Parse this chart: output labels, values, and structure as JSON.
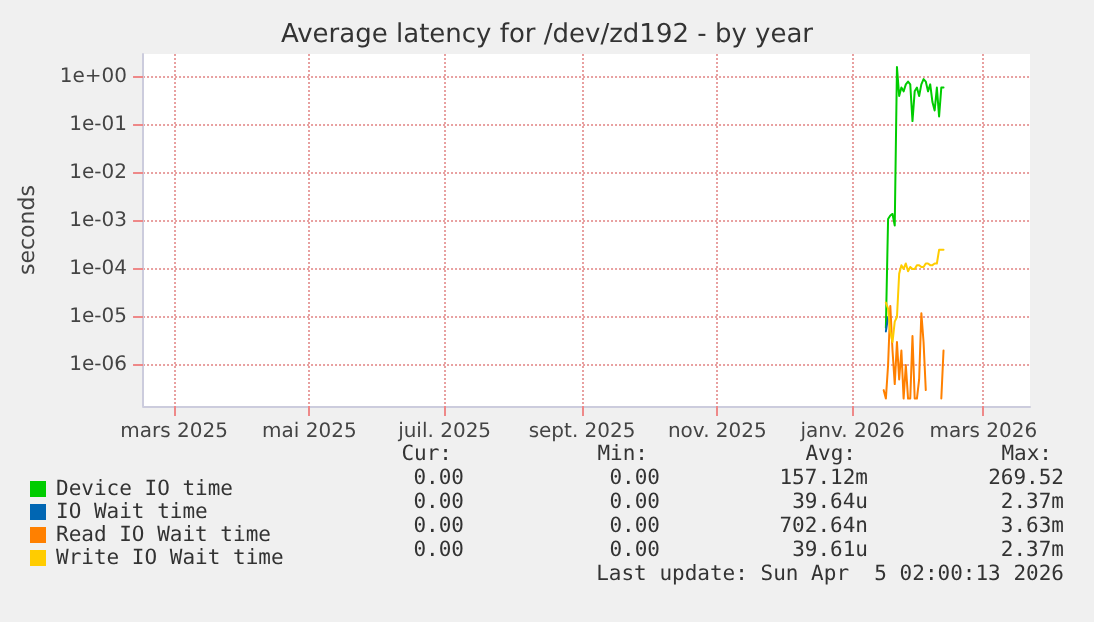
{
  "chart_data": {
    "type": "line",
    "title": "Average latency for /dev/zd192 - by year",
    "ylabel": "seconds",
    "x": [
      "2026-01-29",
      "2026-01-30",
      "2026-01-31",
      "2026-02-01",
      "2026-02-02",
      "2026-02-03",
      "2026-02-04",
      "2026-02-05",
      "2026-02-06",
      "2026-02-07",
      "2026-02-08",
      "2026-02-09",
      "2026-02-10",
      "2026-02-11",
      "2026-02-12",
      "2026-02-13",
      "2026-02-14",
      "2026-02-15",
      "2026-02-16",
      "2026-02-17",
      "2026-02-18",
      "2026-02-19",
      "2026-02-20",
      "2026-02-21",
      "2026-02-22",
      "2026-02-23",
      "2026-02-24",
      "2026-02-25"
    ],
    "series": [
      {
        "name": "Device IO time",
        "color": "#00cc00",
        "values": [
          null,
          6e-06,
          0.0011,
          0.0013,
          0.0014,
          0.0008,
          1.6,
          0.4,
          0.6,
          0.5,
          0.7,
          0.8,
          0.7,
          0.12,
          0.5,
          0.6,
          0.4,
          0.7,
          0.9,
          0.8,
          0.5,
          0.7,
          0.3,
          0.2,
          0.6,
          0.15,
          0.6,
          0.6
        ]
      },
      {
        "name": "IO Wait time",
        "color": "#0066b3",
        "values": [
          null,
          5e-06,
          1e-05,
          null,
          null,
          null,
          null,
          null,
          null,
          null,
          null,
          null,
          null,
          null,
          null,
          null,
          null,
          null,
          null,
          null,
          null,
          null,
          null,
          null,
          null,
          null,
          null,
          null
        ]
      },
      {
        "name": "Read IO Wait time",
        "color": "#ff8000",
        "values": [
          3e-07,
          2e-07,
          1e-06,
          1.7e-05,
          2e-06,
          4e-07,
          3e-06,
          5e-07,
          2e-06,
          2e-07,
          1e-06,
          2e-07,
          2e-07,
          4e-06,
          2e-07,
          2e-07,
          5e-07,
          1.2e-05,
          3e-06,
          3e-07,
          null,
          null,
          null,
          null,
          null,
          null,
          2e-07,
          2e-06
        ]
      },
      {
        "name": "Write IO Wait time",
        "color": "#ffcc00",
        "values": [
          null,
          2e-05,
          1.5e-05,
          5e-06,
          3e-06,
          8e-06,
          1e-05,
          8e-05,
          0.00012,
          0.0001,
          0.00013,
          9e-05,
          0.00011,
          0.0001,
          0.0001,
          0.00012,
          0.00012,
          0.00011,
          0.00011,
          0.00013,
          0.00013,
          0.00012,
          0.00012,
          0.00013,
          0.00013,
          0.00025,
          0.00025,
          0.00025
        ]
      }
    ],
    "log": "y",
    "ylim": [
      1.4e-07,
      3
    ],
    "yticks": [
      {
        "value": 1e-06,
        "label": "1e-06"
      },
      {
        "value": 1e-05,
        "label": "1e-05"
      },
      {
        "value": 0.0001,
        "label": "1e-04"
      },
      {
        "value": 0.001,
        "label": "1e-03"
      },
      {
        "value": 0.01,
        "label": "1e-02"
      },
      {
        "value": 0.1,
        "label": "1e-01"
      },
      {
        "value": 1,
        "label": "1e+00"
      }
    ],
    "xlim": [
      "2025-03-01",
      "2026-04-05"
    ],
    "xticks": [
      {
        "value": "2025-03-15",
        "label": "mars 2025"
      },
      {
        "value": "2025-05-15",
        "label": "mai 2025"
      },
      {
        "value": "2025-07-15",
        "label": "juil. 2025"
      },
      {
        "value": "2025-09-15",
        "label": "sept. 2025"
      },
      {
        "value": "2025-11-15",
        "label": "nov. 2025"
      },
      {
        "value": "2026-01-15",
        "label": "janv. 2026"
      },
      {
        "value": "2026-03-15",
        "label": "mars 2026"
      }
    ],
    "grid": true,
    "legend": "bottom",
    "marker": "none",
    "line_style": "solid",
    "annotations": [
      "Cur:",
      "Min:",
      "Avg:",
      "Max:",
      "0.00",
      "0.00",
      "157.12m",
      "269.52",
      "0.00",
      "0.00",
      "39.64u",
      "2.37m",
      "0.00",
      "0.00",
      "702.64n",
      "3.63m",
      "0.00",
      "0.00",
      "39.61u",
      "2.37m",
      "Last update: Sun Apr  5 02:00:13 2026"
    ]
  }
}
